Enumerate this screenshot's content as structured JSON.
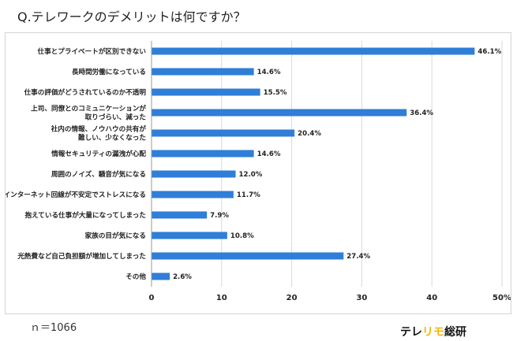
{
  "question": "Q.テレワークのデメリットは何ですか？",
  "sample_size": "ｎ＝1066",
  "brand": {
    "part1": "テレ",
    "part2": "リモ",
    "part3": "総研"
  },
  "colors": {
    "bar": "#2f7ed8",
    "grid": "#d9d9d9",
    "axis": "#9a9a9a",
    "brand_accent": "#f2b705"
  },
  "chart_data": {
    "type": "bar",
    "orientation": "horizontal",
    "title": "",
    "xlabel": "",
    "ylabel": "",
    "xlim": [
      0,
      50
    ],
    "xticks": [
      0,
      10,
      20,
      30,
      40,
      50
    ],
    "xtick_labels": [
      "0",
      "10",
      "20",
      "30",
      "40",
      "50%"
    ],
    "grid": true,
    "legend": "none",
    "categories": [
      [
        "仕事とプライベートが区別できない"
      ],
      [
        "長時間労働になっている"
      ],
      [
        "仕事の評価がどうされているのか不透明"
      ],
      [
        "上司、同僚とのコミュニケーションが",
        "取りづらい、減った"
      ],
      [
        "社内の情報、ノウハウの共有が",
        "難しい、少なくなった"
      ],
      [
        "情報セキュリティの漏洩が心配"
      ],
      [
        "周囲のノイズ、騒音が気になる"
      ],
      [
        "インターネット回線が不安定でストレスになる"
      ],
      [
        "抱えている仕事が大量になってしまった"
      ],
      [
        "家族の目が気になる"
      ],
      [
        "光熱費など自己負担額が増加してしまった"
      ],
      [
        "その他"
      ]
    ],
    "values": [
      46.1,
      14.6,
      15.5,
      36.4,
      20.4,
      14.6,
      12.0,
      11.7,
      7.9,
      10.8,
      27.4,
      2.6
    ],
    "value_labels": [
      "46.1%",
      "14.6%",
      "15.5%",
      "36.4%",
      "20.4%",
      "14.6%",
      "12.0%",
      "11.7%",
      "7.9%",
      "10.8%",
      "27.4%",
      "2.6%"
    ]
  }
}
